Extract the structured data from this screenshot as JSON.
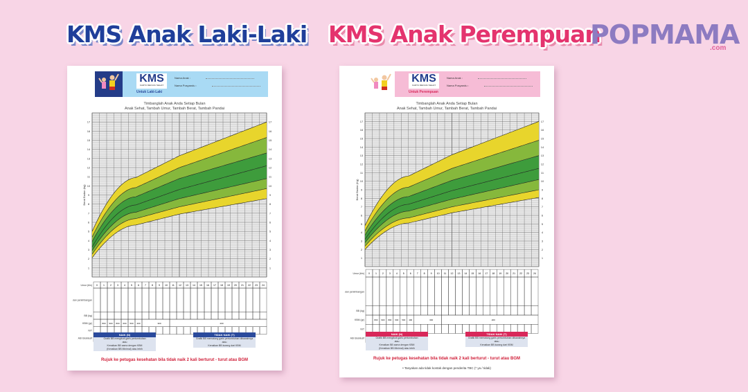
{
  "titles": {
    "boy": "KMS Anak Laki-Laki",
    "girl": "KMS Anak Perempuan"
  },
  "logo": {
    "text": "POPMAMA",
    "suffix": ".com",
    "color": "#8d7bc1"
  },
  "cards": [
    {
      "id": "boy",
      "kms": "KMS",
      "kms_sub": "KARTU MENUJU SEHAT",
      "untuk": "Untuk Laki-Laki",
      "nama_anak": "Nama Anak :",
      "nama_posyandu": "Nama Posyandu :",
      "header_color": "#a9daf4",
      "accent": "#2a4a9c",
      "sub1": "Timbanglah Anak Anda Setiap Bulan",
      "sub2": "Anak Sehat, Tambah Umur, Tambah Berat, Tambah Pandai",
      "y_label": "Berat Badan (kg)",
      "rows": [
        "Umur (bln)",
        "Bulan penimbangan",
        "BB (kg)",
        "KBM (gr)",
        "N/T",
        "ASI Eksklusif"
      ],
      "kbm": [
        "800",
        "900",
        "800",
        "600",
        "500",
        "400",
        "300",
        "200"
      ],
      "legend_naik_title": "NAIK (N)",
      "legend_naik_text": [
        "Grafik BB mengikuti garis pertumbuhan",
        "atau",
        "Kenaikan BB sama dengan KBM",
        "(Kenaikan BB Minimal) atau lebih"
      ],
      "legend_tidak_title": "TIDAK NAIK (T)",
      "legend_tidak_text": [
        "Grafik BB memotong garis pertumbuhan dibawahnya",
        "atau",
        "Kenaikan BB kurang dari KBM"
      ],
      "rujuk": "Rujuk ke petugas kesehatan bila tidak naik 2 kali berturut - turut atau BGM",
      "note": ""
    },
    {
      "id": "girl",
      "kms": "KMS",
      "kms_sub": "KARTU MENUJU SEHAT",
      "untuk": "Untuk Perempuan",
      "nama_anak": "Nama Anak :",
      "nama_posyandu": "Nama Posyandu :",
      "header_color": "#f6bcd6",
      "accent": "#d8285a",
      "sub1": "Timbanglah Anak Anda Setiap Bulan",
      "sub2": "Anak Sehat, Tambah Umur, Tambah Berat, Tambah Pandai",
      "y_label": "Berat Badan (Kg)",
      "rows": [
        "Umur (bln)",
        "Bulan penimbangan",
        "BB (kg)",
        "KBM (gr)",
        "N/T",
        "ASI Eksklusif"
      ],
      "kbm": [
        "800",
        "900",
        "800",
        "600",
        "500",
        "400",
        "300",
        "200"
      ],
      "legend_naik_title": "NAIK (N)",
      "legend_naik_text": [
        "Grafik BB mengikuti garis pertumbuhan",
        "atau",
        "Kenaikan BB sama dengan KBM",
        "(Kenaikan BB Minimal) atau lebih"
      ],
      "legend_tidak_title": "TIDAK NAIK (T)",
      "legend_tidak_text": [
        "Grafik BB memotong garis pertumbuhan dibawahnya",
        "atau",
        "Kenaikan BB kurang dari KBM"
      ],
      "rujuk": "Rujuk ke petugas kesehatan bila tidak naik 2 kali berturut - turut atau BGM",
      "note": "• Tanyakan ada tidak kontak dengan penderita TBC (* ya / tidak)"
    }
  ],
  "chart_data": [
    {
      "type": "area",
      "x": [
        0,
        6,
        12,
        24
      ],
      "xlabel": "Umur (bln)",
      "ylabel": "Berat Badan (kg)",
      "xlim": [
        0,
        24
      ],
      "ylim": [
        0,
        18
      ],
      "series": [
        [
          2.1,
          5.7,
          6.9,
          8.6
        ],
        [
          2.5,
          6.4,
          7.7,
          9.7
        ],
        [
          2.9,
          7.1,
          8.6,
          10.8
        ],
        [
          3.3,
          7.9,
          9.6,
          12.2
        ],
        [
          3.9,
          8.8,
          10.8,
          13.6
        ],
        [
          4.4,
          9.8,
          12.0,
          15.3
        ],
        [
          5.0,
          10.9,
          13.3,
          17.0
        ]
      ],
      "band_colors": [
        "#e8d52c",
        "#86b83c",
        "#3e9c3c",
        "#3e9c3c",
        "#86b83c",
        "#e8d52c"
      ]
    },
    {
      "type": "area",
      "x": [
        0,
        6,
        12,
        24
      ],
      "xlabel": "Umur (bln)",
      "ylabel": "Berat Badan (Kg)",
      "xlim": [
        0,
        24
      ],
      "ylim": [
        0,
        18
      ],
      "series": [
        [
          2.0,
          5.1,
          6.3,
          8.1
        ],
        [
          2.4,
          5.7,
          7.0,
          9.0
        ],
        [
          2.8,
          6.5,
          7.9,
          10.2
        ],
        [
          3.2,
          7.3,
          8.9,
          11.5
        ],
        [
          3.7,
          8.2,
          10.1,
          13.0
        ],
        [
          4.2,
          9.3,
          11.5,
          14.8
        ],
        [
          4.8,
          10.6,
          13.1,
          17.0
        ]
      ],
      "band_colors": [
        "#e8d52c",
        "#86b83c",
        "#3e9c3c",
        "#3e9c3c",
        "#86b83c",
        "#e8d52c"
      ]
    }
  ]
}
